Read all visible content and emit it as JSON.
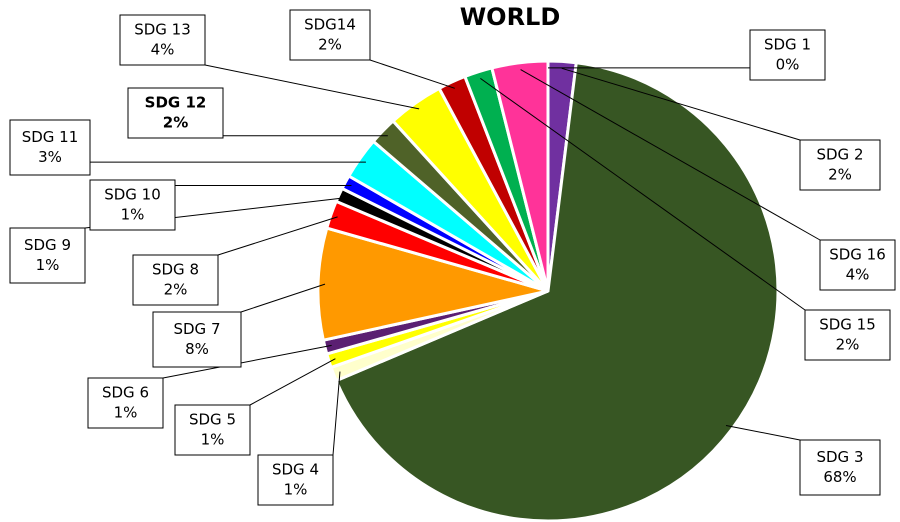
{
  "chart_data": {
    "type": "pie",
    "title": "WORLD",
    "categories": [
      "SDG 1",
      "SDG 2",
      "SDG 3",
      "SDG 4",
      "SDG 5",
      "SDG 6",
      "SDG 7",
      "SDG 8",
      "SDG 9",
      "SDG 10",
      "SDG 11",
      "SDG 12",
      "SDG 13",
      "SDG14",
      "SDG 15",
      "SDG 16"
    ],
    "values": [
      0,
      2,
      68,
      1,
      1,
      1,
      8,
      2,
      1,
      1,
      3,
      2,
      4,
      2,
      2,
      4
    ],
    "value_labels": [
      "0%",
      "2%",
      "68%",
      "1%",
      "1%",
      "1%",
      "8%",
      "2%",
      "1%",
      "1%",
      "3%",
      "2%",
      "4%",
      "2%",
      "2%",
      "4%"
    ],
    "colors": [
      "#d9d2f0",
      "#7030a0",
      "#375623",
      "#ffffcc",
      "#ffff00",
      "#5b1f72",
      "#ff9900",
      "#ff0000",
      "#000000",
      "#0000ff",
      "#00ffff",
      "#4f6228",
      "#ffff00",
      "#c00000",
      "#00b050",
      "#ff3399"
    ]
  }
}
